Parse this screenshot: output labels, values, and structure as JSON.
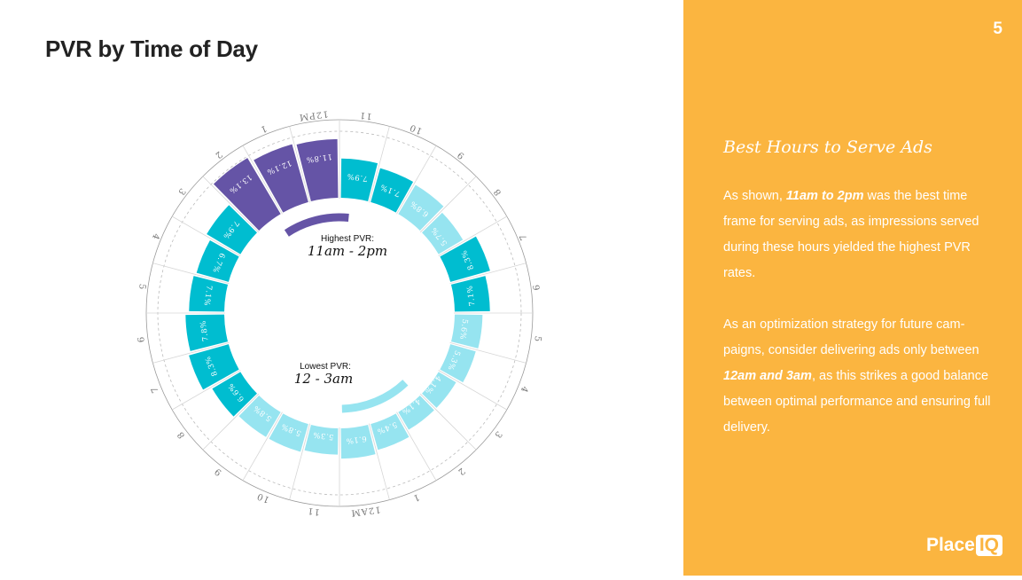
{
  "title": "PVR by Time of Day",
  "page_number": "5",
  "panel": {
    "heading": "Best Hours to Serve Ads",
    "p1": [
      {
        "text": "As shown, ",
        "bold": false
      },
      {
        "text": "11am to 2pm",
        "bold": true
      },
      {
        "text": " was the best time frame for serving ads, as impressions served during these hours yielded the highest PVR rates.",
        "bold": false
      }
    ],
    "p2": [
      {
        "text": "As an optimization strategy for future cam- paigns, consider delivering ads only between ",
        "bold": false
      },
      {
        "text": "12am and 3am",
        "bold": true
      },
      {
        "text": ", as this strikes a good balance between optimal performance and ensuring full delivery.",
        "bold": false
      }
    ]
  },
  "logo": {
    "text": "Place",
    "box": "IQ"
  },
  "colors": {
    "highest": "#6554A6",
    "high": "#00BDD0",
    "low": "#96E4F0",
    "panel": "#FBB540"
  },
  "chart_data": {
    "type": "radial-bar",
    "unit": "%",
    "annotations": [
      {
        "label": "Highest PVR:",
        "range": "11am - 2pm"
      },
      {
        "label": "Lowest PVR:",
        "range": "12 - 3am"
      }
    ],
    "hours": [
      {
        "label": "12AM",
        "value": 6.1,
        "tier": "low"
      },
      {
        "label": "1",
        "value": 5.4,
        "tier": "low"
      },
      {
        "label": "2",
        "value": 4.1,
        "tier": "low"
      },
      {
        "label": "3",
        "value": 4.1,
        "tier": "low"
      },
      {
        "label": "4",
        "value": 5.3,
        "tier": "low"
      },
      {
        "label": "5",
        "value": 5.6,
        "tier": "low"
      },
      {
        "label": "6",
        "value": 7.1,
        "tier": "high"
      },
      {
        "label": "7",
        "value": 8.3,
        "tier": "high"
      },
      {
        "label": "8",
        "value": 5.7,
        "tier": "low"
      },
      {
        "label": "9",
        "value": 6.8,
        "tier": "low"
      },
      {
        "label": "10",
        "value": 7.1,
        "tier": "high"
      },
      {
        "label": "11",
        "value": 7.9,
        "tier": "high"
      },
      {
        "label": "12PM",
        "value": 11.8,
        "tier": "highest"
      },
      {
        "label": "1",
        "value": 12.1,
        "tier": "highest"
      },
      {
        "label": "2",
        "value": 13.1,
        "tier": "highest"
      },
      {
        "label": "3",
        "value": 7.9,
        "tier": "high"
      },
      {
        "label": "4",
        "value": 6.7,
        "tier": "high"
      },
      {
        "label": "5",
        "value": 7.1,
        "tier": "high"
      },
      {
        "label": "6",
        "value": 7.8,
        "tier": "high"
      },
      {
        "label": "7",
        "value": 8.3,
        "tier": "high"
      },
      {
        "label": "8",
        "value": 6.6,
        "tier": "high"
      },
      {
        "label": "9",
        "value": 5.8,
        "tier": "low"
      },
      {
        "label": "10",
        "value": 5.8,
        "tier": "low"
      },
      {
        "label": "11",
        "value": 5.3,
        "tier": "low"
      }
    ]
  }
}
